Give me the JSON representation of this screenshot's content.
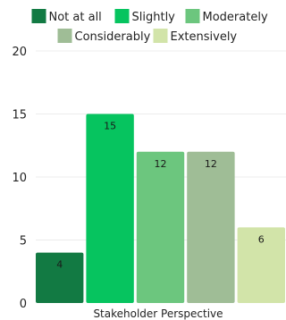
{
  "chart_data": {
    "type": "bar",
    "xlabel": "Stakeholder Perspective",
    "ylabel": "",
    "ylim": [
      0,
      20
    ],
    "yticks": [
      0,
      5,
      10,
      15,
      20
    ],
    "grid": true,
    "legend_position": "top",
    "series": [
      {
        "name": "Not at all",
        "value": 4,
        "color": "#127a43"
      },
      {
        "name": "Slightly",
        "value": 15,
        "color": "#06c45f"
      },
      {
        "name": "Moderately",
        "value": 12,
        "color": "#6cc67e"
      },
      {
        "name": "Considerably",
        "value": 12,
        "color": "#9fbd96"
      },
      {
        "name": "Extensively",
        "value": 6,
        "color": "#d2e4a9"
      }
    ]
  }
}
